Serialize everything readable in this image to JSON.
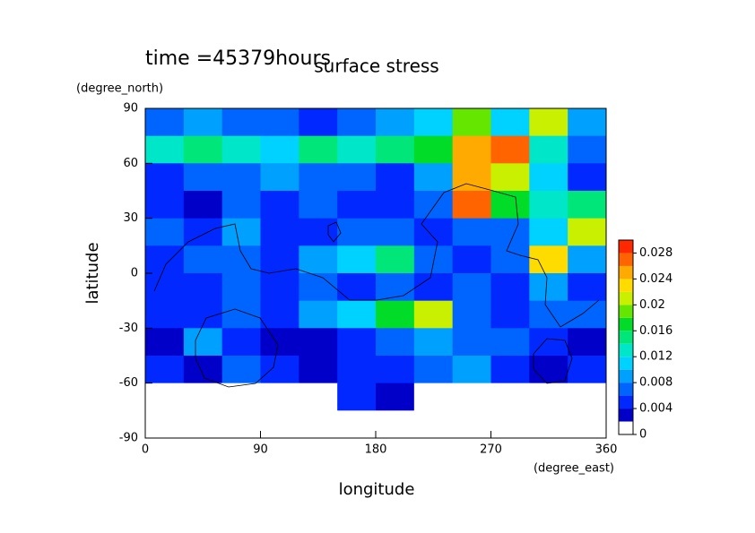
{
  "chart_data": {
    "type": "contour",
    "title": "surface stress",
    "subtitle": "time =45379hours",
    "x_label": "longitude",
    "x_unit": "(degree_east)",
    "y_label": "latitude",
    "y_unit": "(degree_north)",
    "x": [
      15,
      45,
      75,
      105,
      135,
      165,
      195,
      225,
      255,
      285,
      315,
      345
    ],
    "y": [
      82.5,
      67.5,
      52.5,
      37.5,
      22.5,
      7.5,
      -7.5,
      -22.5,
      -37.5,
      -52.5,
      -67.5,
      -82.5
    ],
    "z": [
      [
        0.006,
        0.008,
        0.006,
        0.006,
        0.004,
        0.006,
        0.008,
        0.01,
        0.018,
        0.01,
        0.02,
        0.008
      ],
      [
        0.012,
        0.014,
        0.012,
        0.01,
        0.014,
        0.012,
        0.014,
        0.016,
        0.024,
        0.026,
        0.012,
        0.006
      ],
      [
        0.004,
        0.006,
        0.006,
        0.008,
        0.006,
        0.006,
        0.004,
        0.008,
        0.024,
        0.02,
        0.01,
        0.004
      ],
      [
        0.004,
        0.002,
        0.006,
        0.004,
        0.006,
        0.004,
        0.004,
        0.006,
        0.026,
        0.016,
        0.012,
        0.014
      ],
      [
        0.006,
        0.004,
        0.008,
        0.004,
        0.004,
        0.006,
        0.006,
        0.004,
        0.006,
        0.006,
        0.01,
        0.02
      ],
      [
        0.004,
        0.006,
        0.006,
        0.004,
        0.008,
        0.01,
        0.014,
        0.006,
        0.004,
        0.006,
        0.022,
        0.008
      ],
      [
        0.004,
        0.004,
        0.006,
        0.004,
        0.006,
        0.004,
        0.006,
        0.004,
        0.006,
        0.004,
        0.008,
        0.004
      ],
      [
        0.004,
        0.004,
        0.006,
        0.004,
        0.008,
        0.01,
        0.016,
        0.02,
        0.006,
        0.004,
        0.006,
        0.006
      ],
      [
        0.002,
        0.008,
        0.004,
        0.002,
        0.002,
        0.004,
        0.006,
        0.008,
        0.006,
        0.006,
        0.004,
        0.002
      ],
      [
        0.004,
        0.002,
        0.006,
        0.004,
        0.002,
        0.004,
        0.004,
        0.006,
        0.008,
        0.004,
        0.002,
        0.004
      ],
      [
        0,
        0,
        0,
        0,
        0,
        0.004,
        0.002,
        0,
        0,
        0,
        0,
        0
      ],
      [
        0,
        0,
        0,
        0,
        0,
        0,
        0,
        0,
        0,
        0,
        0,
        0
      ]
    ],
    "levels": [
      0,
      0.002,
      0.004,
      0.006,
      0.008,
      0.01,
      0.012,
      0.014,
      0.016,
      0.018,
      0.02,
      0.022,
      0.024,
      0.026,
      0.028,
      0.03
    ],
    "colors": [
      "#ffffff",
      "#0000c8",
      "#0028ff",
      "#0064ff",
      "#00a0ff",
      "#00d2ff",
      "#00e6c8",
      "#00e678",
      "#00dc28",
      "#64e600",
      "#c8f000",
      "#ffdc00",
      "#ffaa00",
      "#ff6400",
      "#ff2800"
    ],
    "colorbar_ticks": [
      0,
      0.004,
      0.008,
      0.012,
      0.016,
      0.02,
      0.024,
      0.028
    ],
    "xlim": [
      0,
      360
    ],
    "xticks": [
      0,
      90,
      180,
      270,
      360
    ],
    "ylim": [
      -90,
      90
    ],
    "yticks": [
      -90,
      -60,
      -30,
      0,
      30,
      60,
      90
    ]
  }
}
